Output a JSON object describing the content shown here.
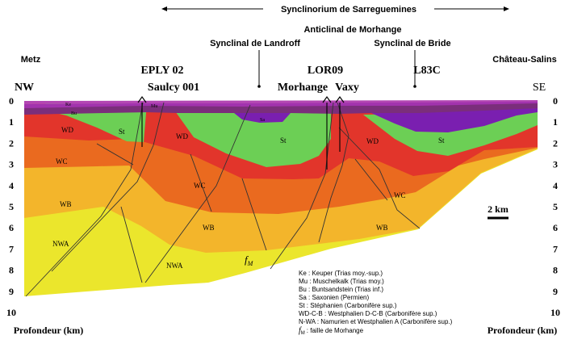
{
  "structures": {
    "synclinorium": "Synclinorium de Sarreguemines",
    "anticlinal": "Anticlinal de Morhange",
    "syncline_left": "Synclinal de Landroff",
    "syncline_right": "Synclinal de Bride"
  },
  "places": {
    "left_town": "Metz",
    "right_town": "Château-Salins"
  },
  "orientation": {
    "left": "NW",
    "right": "SE"
  },
  "wells": [
    {
      "name": "EPLY 02"
    },
    {
      "name": "Saulcy 001"
    },
    {
      "name": "LOR09"
    },
    {
      "name": "Morhange"
    },
    {
      "name": "Vaxy"
    },
    {
      "name": "L83C"
    }
  ],
  "depth_axis": {
    "label": "Profondeur (km)",
    "ticks": [
      "0",
      "1",
      "2",
      "3",
      "4",
      "5",
      "6",
      "7",
      "8",
      "9",
      "10"
    ]
  },
  "scale_bar": {
    "label": "2 km"
  },
  "units": {
    "Ke": "Ke",
    "Mu": "Mu",
    "Bu": "Bu",
    "Sa": "Sa",
    "St": "St",
    "WD": "WD",
    "WC": "WC",
    "WB": "WB",
    "NWA": "NWA"
  },
  "fault": {
    "label": "f",
    "subscript": "M"
  },
  "legend": [
    {
      "text": "Ke : Keuper (Trias moy.-sup.)"
    },
    {
      "text": "Mu : Muschelkalk (Trias moy.)"
    },
    {
      "text": "Bu : Buntsandstein (Trias inf.)"
    },
    {
      "text": "Sa : Saxonien (Permien)"
    },
    {
      "text": "St : Stéphanien (Carbonifère sup.)"
    },
    {
      "text": "WD-C-B : Westphalien D-C-B (Carbonifère sup.)"
    },
    {
      "text": "N-WA : Namurien et Westphalien A (Carbonifère sup.)"
    },
    {
      "fault_symbol": "f",
      "fault_sub": "M",
      "text": ": faille de Morhange"
    }
  ],
  "colors": {
    "ke": "#b347b3",
    "mu": "#a233ae",
    "bu": "#7b2e7b",
    "sa": "#7a1fb0",
    "st": "#6ccf55",
    "wd": "#e2352b",
    "wc": "#ea6a1f",
    "wb": "#f3b52b",
    "nwa": "#ebe62c"
  }
}
